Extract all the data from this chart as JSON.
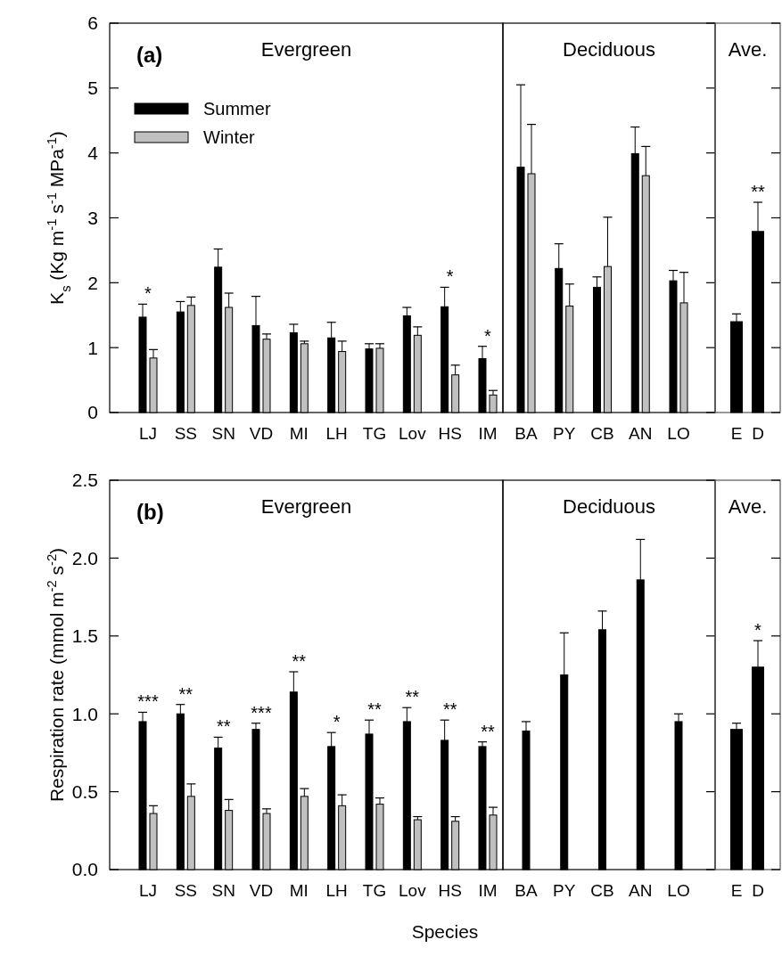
{
  "chart_data": [
    {
      "type": "bar",
      "title": "Evergreen",
      "ylabel": "K$_{s}$ (Kg m$^{-1}$ s$^{-1}$ MPa$^{-1}$)",
      "categories": [
        "LJ",
        "SS",
        "SN",
        "VD",
        "MI",
        "LH",
        "TG",
        "Lov",
        "HS",
        "IM"
      ],
      "ylim": [
        0,
        6
      ],
      "yticks": [
        0,
        1,
        2,
        3,
        4,
        5,
        6
      ],
      "legend": "top left",
      "series": [
        {
          "name": "Summer",
          "color": "#000000",
          "values": [
            1.47,
            1.55,
            2.24,
            1.34,
            1.23,
            1.15,
            0.98,
            1.49,
            1.63,
            0.83
          ],
          "errors": [
            [
              1.47,
              1.67
            ],
            [
              1.55,
              1.71
            ],
            [
              2.24,
              2.52
            ],
            [
              1.34,
              1.79
            ],
            [
              1.23,
              1.36
            ],
            [
              1.15,
              1.39
            ],
            [
              0.98,
              1.06
            ],
            [
              1.49,
              1.62
            ],
            [
              1.63,
              1.93
            ],
            [
              0.83,
              1.02
            ]
          ]
        },
        {
          "name": "Winter",
          "color": "#c0c0c0",
          "values": [
            0.84,
            1.65,
            1.62,
            1.13,
            1.06,
            0.94,
            0.99,
            1.19,
            0.58,
            0.27
          ],
          "errors": [
            [
              0.84,
              0.97
            ],
            [
              1.65,
              1.78
            ],
            [
              1.62,
              1.84
            ],
            [
              1.13,
              1.21
            ],
            [
              1.06,
              1.1
            ],
            [
              0.94,
              1.1
            ],
            [
              0.99,
              1.06
            ],
            [
              1.19,
              1.32
            ],
            [
              0.58,
              0.73
            ],
            [
              0.27,
              0.34
            ]
          ]
        }
      ],
      "annotations": [
        "(a)",
        {
          "text": "*",
          "x": "LJ",
          "y": 1.67
        },
        {
          "text": "*",
          "x": "HS",
          "y": 1.93
        },
        {
          "text": "*",
          "x": "IM",
          "y": 1.02
        }
      ]
    },
    {
      "type": "bar",
      "title": "Deciduous",
      "categories": [
        "BA",
        "PY",
        "CB",
        "AN",
        "LO"
      ],
      "ylim": [
        0,
        6
      ],
      "yticks": [
        {
          "value": 0,
          "label": null
        },
        {
          "value": 1,
          "label": null
        },
        {
          "value": 2,
          "label": null
        },
        {
          "value": 3,
          "label": null
        },
        {
          "value": 4,
          "label": null
        },
        {
          "value": 5,
          "label": null
        },
        {
          "value": 6,
          "label": null
        }
      ],
      "tick_labels": "x",
      "series": [
        {
          "color": "#000000",
          "values": [
            3.78,
            2.22,
            1.93,
            3.99,
            2.03
          ],
          "errors": [
            [
              3.78,
              5.05
            ],
            [
              2.22,
              2.6
            ],
            [
              1.93,
              2.09
            ],
            [
              3.99,
              4.4
            ],
            [
              2.03,
              2.19
            ]
          ]
        },
        {
          "color": "#c0c0c0",
          "values": [
            3.68,
            1.64,
            2.25,
            3.65,
            1.69
          ],
          "errors": [
            [
              3.68,
              4.44
            ],
            [
              1.64,
              1.98
            ],
            [
              2.25,
              3.01
            ],
            [
              3.65,
              4.1
            ],
            [
              1.69,
              2.16
            ]
          ]
        }
      ]
    },
    {
      "type": "bar",
      "title": "Ave.",
      "categories": [
        "E",
        "D"
      ],
      "ylim": [
        0,
        6
      ],
      "yticks": [
        {
          "value": 0,
          "label": null
        },
        {
          "value": 1,
          "label": null
        },
        {
          "value": 2,
          "label": null
        },
        {
          "value": 3,
          "label": null
        },
        {
          "value": 4,
          "label": null
        },
        {
          "value": 5,
          "label": null
        },
        {
          "value": 6,
          "label": null
        }
      ],
      "tick_labels": "x",
      "series": [
        {
          "color": "#000000",
          "values": [
            1.4,
            2.79
          ],
          "errors": [
            [
              1.4,
              1.52
            ],
            [
              2.79,
              3.24
            ]
          ]
        }
      ],
      "annotations": [
        {
          "text": "**",
          "x": "D",
          "y": 3.24
        }
      ]
    },
    {
      "type": "bar",
      "title": "Evergreen",
      "ylabel": "Respiration rate (mmol m$^{-2}$ s$^{-2}$)",
      "xlabel": "Species",
      "categories": [
        "LJ",
        "SS",
        "SN",
        "VD",
        "MI",
        "LH",
        "TG",
        "Lov",
        "HS",
        "IM"
      ],
      "ylim": [
        0,
        2.5
      ],
      "yticks": [
        {
          "value": 0,
          "label": "0.0"
        },
        {
          "value": 0.5,
          "label": "0.5"
        },
        {
          "value": 1,
          "label": "1.0"
        },
        {
          "value": 1.5,
          "label": "1.5"
        },
        {
          "value": 2,
          "label": "2.0"
        },
        {
          "value": 2.5,
          "label": "2.5"
        }
      ],
      "series": [
        {
          "color": "#000000",
          "values": [
            0.95,
            1.0,
            0.78,
            0.9,
            1.14,
            0.79,
            0.87,
            0.95,
            0.83,
            0.79
          ],
          "errors": [
            [
              0.95,
              1.01
            ],
            [
              1.0,
              1.06
            ],
            [
              0.78,
              0.85
            ],
            [
              0.9,
              0.94
            ],
            [
              1.14,
              1.27
            ],
            [
              0.79,
              0.88
            ],
            [
              0.87,
              0.96
            ],
            [
              0.95,
              1.04
            ],
            [
              0.83,
              0.96
            ],
            [
              0.79,
              0.82
            ]
          ]
        },
        {
          "color": "#c0c0c0",
          "values": [
            0.36,
            0.47,
            0.38,
            0.36,
            0.47,
            0.41,
            0.42,
            0.32,
            0.31,
            0.35
          ],
          "errors": [
            [
              0.36,
              0.41
            ],
            [
              0.47,
              0.55
            ],
            [
              0.38,
              0.45
            ],
            [
              0.36,
              0.39
            ],
            [
              0.47,
              0.52
            ],
            [
              0.41,
              0.48
            ],
            [
              0.42,
              0.46
            ],
            [
              0.32,
              0.34
            ],
            [
              0.31,
              0.34
            ],
            [
              0.35,
              0.4
            ]
          ]
        }
      ],
      "annotations": [
        "(b)",
        {
          "text": "***",
          "x": "LJ",
          "y": 1.01
        },
        {
          "text": "**",
          "x": "SS",
          "y": 1.06
        },
        {
          "text": "**",
          "x": "SN",
          "y": 0.85
        },
        {
          "text": "***",
          "x": "VD",
          "y": 0.94
        },
        {
          "text": "**",
          "x": "MI",
          "y": 1.27
        },
        {
          "text": "*",
          "x": "LH",
          "y": 0.88
        },
        {
          "text": "**",
          "x": "TG",
          "y": 0.96
        },
        {
          "text": "**",
          "x": "Lov",
          "y": 1.04
        },
        {
          "text": "**",
          "x": "HS",
          "y": 0.96
        },
        {
          "text": "**",
          "x": "IM",
          "y": 0.82
        }
      ]
    },
    {
      "type": "bar",
      "title": "Deciduous",
      "categories": [
        "BA",
        "PY",
        "CB",
        "AN",
        "LO"
      ],
      "ylim": [
        0,
        2.5
      ],
      "yticks": [
        {
          "value": 0,
          "label": null
        },
        {
          "value": 0.5,
          "label": null
        },
        {
          "value": 1,
          "label": null
        },
        {
          "value": 1.5,
          "label": null
        },
        {
          "value": 2,
          "label": null
        },
        {
          "value": 2.5,
          "label": null
        }
      ],
      "tick_labels": "x",
      "series": [
        {
          "color": "#000000",
          "values": [
            0.89,
            1.25,
            1.54,
            1.86,
            0.95
          ],
          "errors": [
            [
              0.89,
              0.95
            ],
            [
              1.25,
              1.52
            ],
            [
              1.54,
              1.66
            ],
            [
              1.86,
              2.12
            ],
            [
              0.95,
              1.0
            ]
          ]
        }
      ]
    },
    {
      "type": "bar",
      "title": "Ave.",
      "categories": [
        "E",
        "D"
      ],
      "ylim": [
        0,
        2.5
      ],
      "yticks": [
        {
          "value": 0,
          "label": null
        },
        {
          "value": 0.5,
          "label": null
        },
        {
          "value": 1,
          "label": null
        },
        {
          "value": 1.5,
          "label": null
        },
        {
          "value": 2,
          "label": null
        },
        {
          "value": 2.5,
          "label": null
        }
      ],
      "tick_labels": "x",
      "series": [
        {
          "color": "#000000",
          "values": [
            0.9,
            1.3
          ],
          "errors": [
            [
              0.9,
              0.94
            ],
            [
              1.3,
              1.47
            ]
          ]
        }
      ],
      "annotations": [
        {
          "text": "*",
          "x": "D",
          "y": 1.47
        }
      ]
    }
  ]
}
